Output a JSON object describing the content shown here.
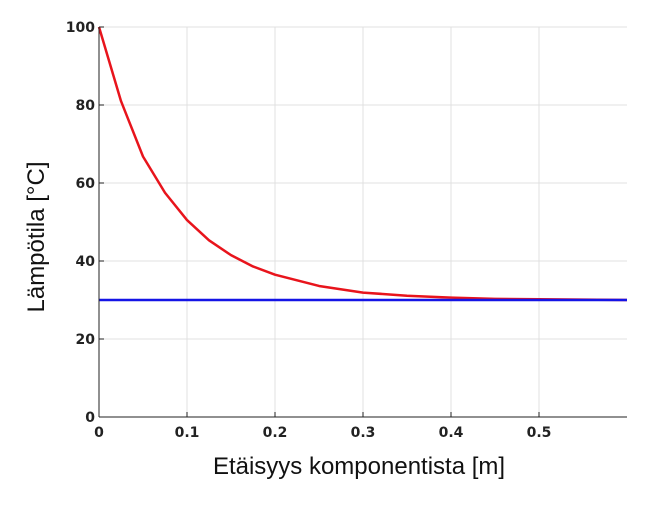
{
  "chart_data": {
    "type": "line",
    "title": "",
    "xlabel": "Etäisyys komponentista [m]",
    "ylabel": "Lämpötila [°C]",
    "xlim": [
      0,
      0.6
    ],
    "ylim": [
      0,
      100
    ],
    "x_ticks": [
      0,
      0.1,
      0.2,
      0.3,
      0.4,
      0.5
    ],
    "x_tick_labels": [
      "0",
      "0.1",
      "0.2",
      "0.3",
      "0.4",
      "0.5"
    ],
    "y_ticks": [
      0,
      20,
      40,
      60,
      80,
      100
    ],
    "y_tick_labels": [
      "0",
      "20",
      "40",
      "60",
      "80",
      "100"
    ],
    "grid": true,
    "series": [
      {
        "color": "#e8141c",
        "x": [
          0,
          0.025,
          0.05,
          0.075,
          0.1,
          0.125,
          0.15,
          0.175,
          0.2,
          0.25,
          0.3,
          0.35,
          0.4,
          0.45,
          0.5,
          0.55,
          0.6
        ],
        "y": [
          100,
          81.0,
          66.8,
          57.5,
          50.5,
          45.3,
          41.5,
          38.6,
          36.5,
          33.6,
          31.9,
          31.1,
          30.6,
          30.3,
          30.2,
          30.1,
          30.0
        ]
      },
      {
        "color": "#1414e6",
        "x": [
          0,
          0.6
        ],
        "y": [
          30,
          30
        ]
      }
    ]
  }
}
